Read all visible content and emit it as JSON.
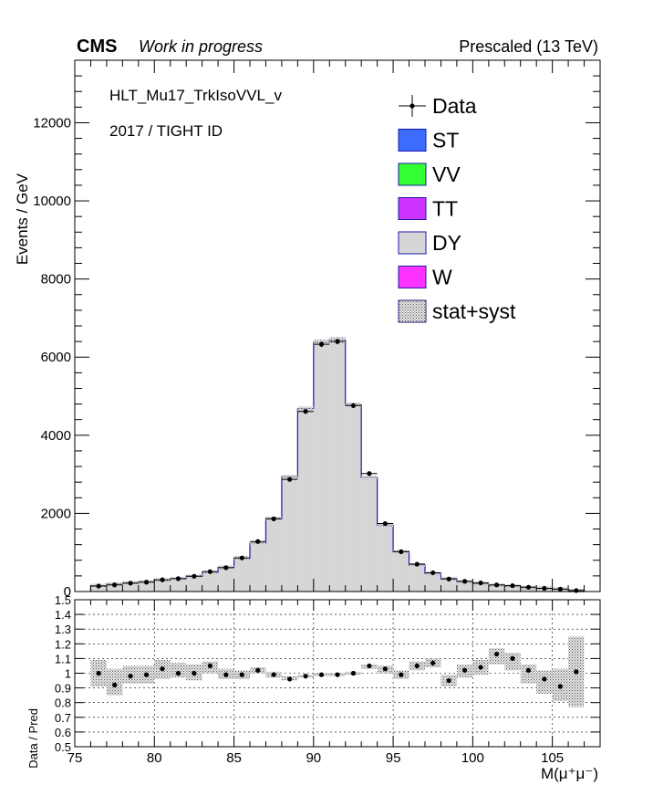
{
  "header": {
    "experiment": "CMS",
    "status": "Work in progress",
    "energy": "Prescaled (13 TeV)"
  },
  "annotations": {
    "trigger": "HLT_Mu17_TrkIsoVVL_v",
    "selection": "2017 / TIGHT ID"
  },
  "legend": [
    {
      "label": "Data",
      "kind": "marker"
    },
    {
      "label": "ST",
      "kind": "fill",
      "color": "#3c6dff"
    },
    {
      "label": "VV",
      "kind": "fill",
      "color": "#33ff33"
    },
    {
      "label": "TT",
      "kind": "fill",
      "color": "#cc33ff"
    },
    {
      "label": "DY",
      "kind": "fill",
      "color": "#d6d6d6"
    },
    {
      "label": "W",
      "kind": "fill",
      "color": "#ff33ff"
    },
    {
      "label": "stat+syst",
      "kind": "hatch"
    }
  ],
  "chart_data": {
    "type": "bar",
    "main": {
      "ylabel": "Events / GeV",
      "xlim": [
        75,
        108
      ],
      "ylim": [
        0,
        13600
      ],
      "yticks": [
        0,
        2000,
        4000,
        6000,
        8000,
        10000,
        12000
      ],
      "bin_edges": [
        76,
        77,
        78,
        79,
        80,
        81,
        82,
        83,
        84,
        85,
        86,
        87,
        88,
        89,
        90,
        91,
        92,
        93,
        94,
        95,
        96,
        97,
        98,
        99,
        100,
        101,
        102,
        103,
        104,
        105,
        106,
        107
      ],
      "series": [
        {
          "name": "DY",
          "values": [
            150,
            190,
            220,
            250,
            290,
            330,
            390,
            490,
            620,
            860,
            1240,
            1870,
            2940,
            4680,
            6380,
            6440,
            4780,
            2920,
            1700,
            1020,
            680,
            460,
            330,
            250,
            200,
            155,
            140,
            100,
            82,
            65,
            20
          ]
        },
        {
          "name": "Data",
          "values": [
            140,
            170,
            215,
            240,
            300,
            330,
            390,
            510,
            610,
            860,
            1280,
            1860,
            2870,
            4610,
            6330,
            6400,
            4760,
            3020,
            1740,
            1020,
            700,
            480,
            320,
            260,
            220,
            170,
            150,
            110,
            82,
            62,
            25
          ]
        }
      ]
    },
    "ratio": {
      "ylabel": "Data / Pred",
      "xlabel": "M(μ⁺μ⁻)",
      "ylim": [
        0.5,
        1.5
      ],
      "yticks": [
        "0.5",
        "0.6",
        "0.7",
        "0.8",
        "0.9",
        "1",
        "1.1",
        "1.2",
        "1.3",
        "1.4",
        "1.5"
      ],
      "xticks": [
        "75",
        "80",
        "85",
        "90",
        "95",
        "100",
        "105"
      ],
      "values": [
        1.0,
        0.92,
        0.98,
        0.99,
        1.03,
        1.0,
        1.0,
        1.05,
        0.99,
        0.99,
        1.02,
        0.99,
        0.96,
        0.98,
        0.99,
        0.99,
        1.0,
        1.05,
        1.03,
        0.99,
        1.05,
        1.07,
        0.95,
        1.02,
        1.04,
        1.13,
        1.1,
        1.02,
        0.96,
        0.91,
        1.01
      ],
      "band": [
        [
          0.91,
          1.09
        ],
        [
          0.85,
          1.03
        ],
        [
          0.93,
          1.05
        ],
        [
          0.93,
          1.05
        ],
        [
          0.96,
          1.09
        ],
        [
          0.97,
          1.07
        ],
        [
          0.95,
          1.06
        ],
        [
          1.0,
          1.08
        ],
        [
          0.96,
          1.03
        ],
        [
          0.96,
          1.02
        ],
        [
          1.0,
          1.04
        ],
        [
          0.97,
          1.01
        ],
        [
          0.95,
          0.98
        ],
        [
          0.97,
          0.99
        ],
        [
          0.98,
          1.0
        ],
        [
          0.98,
          1.0
        ],
        [
          0.99,
          1.01
        ],
        [
          1.03,
          1.06
        ],
        [
          1.0,
          1.05
        ],
        [
          0.96,
          1.02
        ],
        [
          1.02,
          1.08
        ],
        [
          1.04,
          1.1
        ],
        [
          0.91,
          0.99
        ],
        [
          0.97,
          1.06
        ],
        [
          0.99,
          1.09
        ],
        [
          1.06,
          1.17
        ],
        [
          1.02,
          1.14
        ],
        [
          0.93,
          1.06
        ],
        [
          0.86,
          1.02
        ],
        [
          0.81,
          1.03
        ],
        [
          0.77,
          1.25
        ]
      ],
      "grid": true
    }
  }
}
